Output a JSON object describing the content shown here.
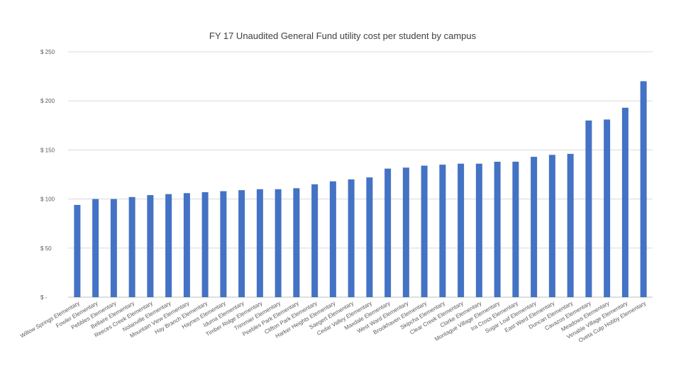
{
  "chart_data": {
    "type": "bar",
    "title": "FY 17 Unaudited General Fund utility cost per student by campus",
    "xlabel": "",
    "ylabel": "",
    "ylim": [
      0,
      250
    ],
    "yticks": [
      0,
      50,
      100,
      150,
      200,
      250
    ],
    "ytick_labels": [
      "$ -",
      "$ 50",
      "$ 100",
      "$ 150",
      "$ 200",
      "$ 250"
    ],
    "grid": true,
    "bar_color": "#4472C4",
    "categories": [
      "Willow Springs Elementary",
      "Fowler Elementary",
      "Pebbles Elementary",
      "Bellaire Elementary",
      "Reeces Creek Elementary",
      "Nolanville Elementary",
      "Mountain View Elementary",
      "Hay Branch Elementary",
      "Haynes Elementary",
      "Iduma Elementary",
      "Timber Ridge Elementary",
      "Trimmier Elementary",
      "Peebles Park Elementary",
      "Clifton Park Elementary",
      "Harker Heights Elementary",
      "Saegert Elementary",
      "Cedar Valley Elementary",
      "Maxdale Elementary",
      "West Ward Elementary",
      "Brookhaven Elementary",
      "Skipcha Elementary",
      "Clear Creek Elementary",
      "Clarke Elementary",
      "Montague Village Elementary",
      "Ira Cross Elementary",
      "Sugar Loaf Elementary",
      "East Ward Elementary",
      "Duncan Elementary",
      "Cavazos Elementary",
      "Meadows Elementary",
      "Venable Village Elementary",
      "Oveta Culp Hobby Elementary"
    ],
    "values": [
      94,
      100,
      100,
      102,
      104,
      105,
      106,
      107,
      108,
      109,
      110,
      110,
      111,
      115,
      118,
      120,
      122,
      131,
      132,
      134,
      135,
      136,
      136,
      138,
      138,
      143,
      145,
      146,
      180,
      181,
      193,
      220
    ]
  }
}
